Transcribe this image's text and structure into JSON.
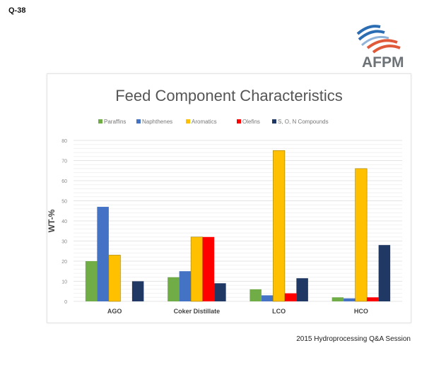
{
  "slide": {
    "question_number": "Q-38",
    "logo_text": "AFPM",
    "footer": "2015 Hydroprocessing Q&A Session"
  },
  "chart_data": {
    "type": "bar",
    "title": "Feed Component Characteristics",
    "xlabel": "",
    "ylabel": "WT-%",
    "ylim": [
      0,
      80
    ],
    "yticks": [
      0,
      10,
      20,
      30,
      40,
      50,
      60,
      70,
      80
    ],
    "grid": true,
    "legend_position": "top",
    "categories": [
      "AGO",
      "Coker Distillate",
      "LCO",
      "HCO"
    ],
    "series": [
      {
        "name": "Paraffins",
        "color": "#70ad47",
        "values": [
          20,
          12,
          6,
          2
        ]
      },
      {
        "name": "Naphthenes",
        "color": "#4472c4",
        "values": [
          47,
          15,
          3,
          1.5
        ]
      },
      {
        "name": "Aromatics",
        "color": "#ffc000",
        "values": [
          23,
          32,
          75,
          66
        ]
      },
      {
        "name": "Olefins",
        "color": "#ff0000",
        "values": [
          0,
          32,
          4,
          2
        ]
      },
      {
        "name": "S, O, N Compounds",
        "color": "#203864",
        "values": [
          10,
          9,
          11.5,
          28
        ]
      }
    ]
  }
}
